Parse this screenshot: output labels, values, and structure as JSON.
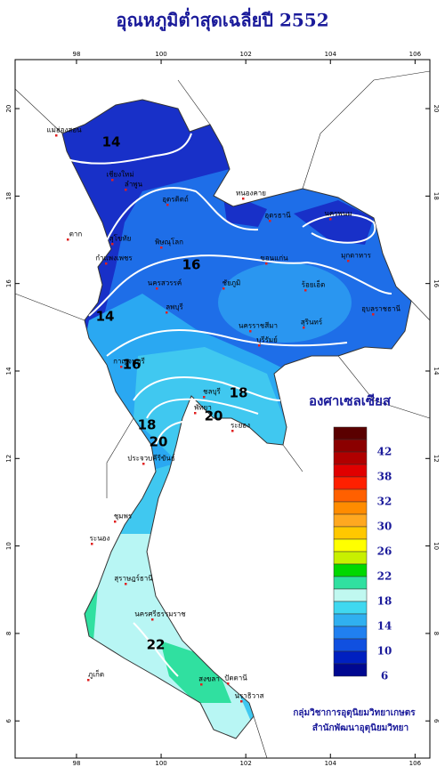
{
  "title": "อุณหภูมิต่ำสุดเฉลี่ยปี 2552",
  "map": {
    "xlim": [
      96.55,
      106.35
    ],
    "ylim": [
      5.15,
      21.12
    ],
    "xticks": [
      98,
      100,
      102,
      104,
      106
    ],
    "yticks": [
      6,
      8,
      10,
      12,
      14,
      16,
      18,
      20
    ]
  },
  "legend": {
    "title": "องศาเซลเซียส",
    "colors": [
      "#5a0000",
      "#8b0000",
      "#b00000",
      "#e00000",
      "#ff2000",
      "#ff6000",
      "#ff8c00",
      "#ffa820",
      "#ffc800",
      "#ffff00",
      "#c8f000",
      "#00d800",
      "#30e0a0",
      "#c0f8f0",
      "#40d8f0",
      "#30b0f0",
      "#2080f0",
      "#1050e0",
      "#0020c0",
      "#000890"
    ],
    "labels": [
      42,
      38,
      32,
      30,
      26,
      22,
      18,
      14,
      10,
      6
    ]
  },
  "contour_labels": [
    14,
    14,
    16,
    16,
    18,
    18,
    20,
    20,
    22
  ],
  "places": [
    "แม่ฮ่องสอน",
    "เชียงใหม่",
    "ลำพูน",
    "อุตรดิตถ์",
    "ตาก",
    "สุโขทัย",
    "กำแพงเพชร",
    "พิษณุโลก",
    "นครสวรรค์",
    "หนองคาย",
    "อุดรธานี",
    "นครพนม",
    "มุกดาหาร",
    "ขอนแก่น",
    "ร้อยเอ็ด",
    "อุบลราชธานี",
    "ชัยภูมิ",
    "นครราชสีมา",
    "บุรีรัมย์",
    "สุรินทร์",
    "ลพบุรี",
    "กาญจนบุรี",
    "ชลบุรี",
    "พัทยา",
    "ระยอง",
    "ประจวบคีรีขันธ์",
    "ชุมพร",
    "ระนอง",
    "สุราษฎร์ธานี",
    "นครศรีธรรมราช",
    "ภูเก็ต",
    "สงขลา",
    "ปัตตานี",
    "นราธิวาส"
  ],
  "credits": [
    "กลุ่มวิชาการอุตุนิยมวิทยาเกษตร",
    "สำนักพัฒนาอุตุนิยมวิทยา"
  ]
}
